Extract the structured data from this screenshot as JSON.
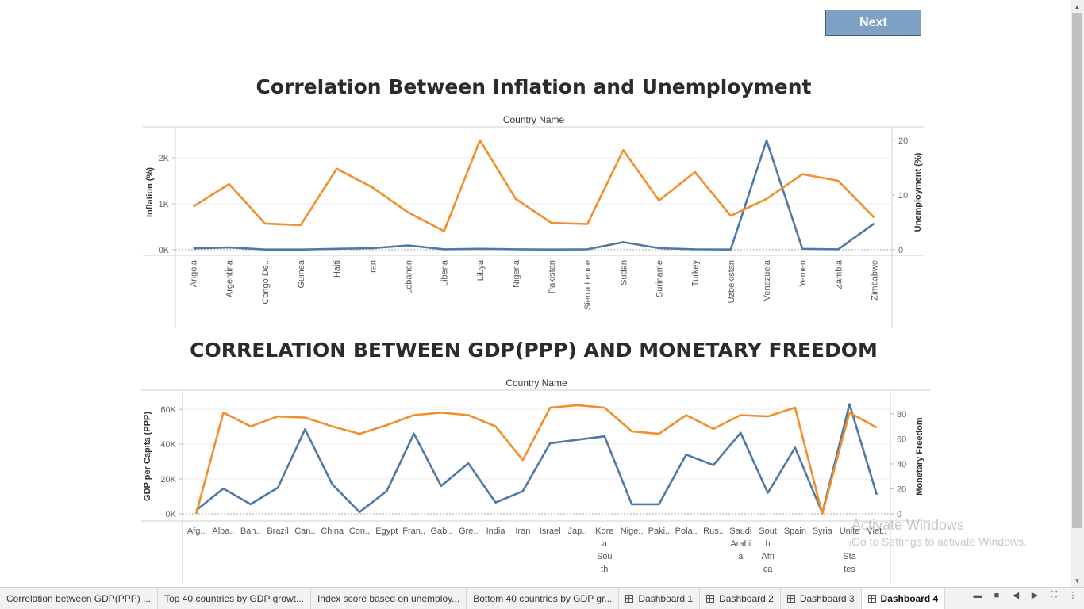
{
  "next_button": {
    "label": "Next"
  },
  "charts": [
    {
      "title": "Correlation Between Inflation and Unemployment",
      "header": "Country Name",
      "left_axis": {
        "label": "Inflation (%)",
        "ticks": [
          "0K",
          "1K",
          "2K"
        ]
      },
      "right_axis": {
        "label": "Unemployment (%)",
        "ticks": [
          "0",
          "10",
          "20"
        ]
      },
      "categories": [
        "Angola",
        "Argentina",
        "Congo De..",
        "Guinea",
        "Haiti",
        "Iran",
        "Lebanon",
        "Liberia",
        "Libya",
        "Nigeria",
        "Pakistan",
        "Sierra Leone",
        "Sudan",
        "Suriname",
        "Turkey",
        "Uzbekistan",
        "Venezuela",
        "Yemen",
        "Zambia",
        "Zimbabwe"
      ]
    },
    {
      "title": "CORRELATION BETWEEN GDP(PPP) AND MONETARY FREEDOM",
      "header": "Country Name",
      "left_axis": {
        "label": "GDP per Capita (PPP)",
        "ticks": [
          "0K",
          "20K",
          "40K",
          "60K"
        ]
      },
      "right_axis": {
        "label": "Monetary Freedom",
        "ticks": [
          "0",
          "20",
          "40",
          "60",
          "80"
        ]
      },
      "categories": [
        "Afg..",
        "Alba..",
        "Ban..",
        "Brazil",
        "Can..",
        "China",
        "Con..",
        "Egypt",
        "Fran..",
        "Gab..",
        "Gre..",
        "India",
        "Iran",
        "Israel",
        "Jap..",
        "Kore a Sou th",
        "Nige..",
        "Paki..",
        "Pola..",
        "Rus..",
        "Saudi Arabi a",
        "Sout h Afri ca",
        "Spain",
        "Syria",
        "Unite d Sta tes",
        "Viet.."
      ]
    }
  ],
  "chart_data": [
    {
      "type": "line",
      "title": "Correlation Between Inflation and Unemployment",
      "xlabel": "Country Name",
      "categories": [
        "Angola",
        "Argentina",
        "Congo De..",
        "Guinea",
        "Haiti",
        "Iran",
        "Lebanon",
        "Liberia",
        "Libya",
        "Nigeria",
        "Pakistan",
        "Sierra Leone",
        "Sudan",
        "Suriname",
        "Turkey",
        "Uzbekistan",
        "Venezuela",
        "Yemen",
        "Zambia",
        "Zimbabwe"
      ],
      "series": [
        {
          "name": "Inflation (%)",
          "axis": "left",
          "color": "#4e79a7",
          "values": [
            30,
            50,
            5,
            5,
            20,
            35,
            95,
            10,
            20,
            10,
            5,
            10,
            165,
            35,
            10,
            5,
            2380,
            20,
            10,
            570
          ]
        },
        {
          "name": "Unemployment (%)",
          "axis": "right",
          "color": "#f28e2b",
          "values": [
            7.9,
            12.0,
            4.8,
            4.5,
            14.8,
            11.4,
            6.8,
            3.4,
            20.0,
            9.3,
            4.9,
            4.7,
            18.2,
            9.0,
            14.2,
            6.2,
            9.3,
            13.8,
            12.6,
            5.9
          ]
        }
      ],
      "ylim_left": [
        0,
        2500
      ],
      "ylim_right": [
        0,
        21
      ],
      "grid": true
    },
    {
      "type": "line",
      "title": "CORRELATION BETWEEN GDP(PPP) AND MONETARY FREEDOM",
      "xlabel": "Country Name",
      "categories": [
        "Afg..",
        "Alba..",
        "Ban..",
        "Brazil",
        "Can..",
        "China",
        "Con..",
        "Egypt",
        "Fran..",
        "Gab..",
        "Gre..",
        "India",
        "Iran",
        "Israel",
        "Jap..",
        "Kore a Sou th",
        "Nige..",
        "Paki..",
        "Pola..",
        "Rus..",
        "Saudi Arabi a",
        "Sout h Afri ca",
        "Spain",
        "Syria",
        "Unite d Sta tes",
        "Viet.."
      ],
      "series": [
        {
          "name": "GDP per Capita (PPP)",
          "axis": "left",
          "color": "#4e79a7",
          "values": [
            2000,
            14500,
            5500,
            15000,
            48500,
            17000,
            1000,
            13000,
            46000,
            16000,
            29000,
            6500,
            13000,
            40500,
            42500,
            44500,
            5500,
            5500,
            34000,
            28000,
            46500,
            12000,
            38000,
            500,
            63000,
            11000
          ]
        },
        {
          "name": "Monetary Freedom",
          "axis": "right",
          "color": "#f28e2b",
          "values": [
            0,
            81,
            70,
            78,
            77,
            70,
            64,
            71,
            79,
            81,
            79,
            70,
            43,
            85,
            87,
            85,
            66,
            64,
            79,
            68,
            79,
            78,
            85,
            0,
            81,
            69
          ]
        }
      ],
      "ylim_left": [
        0,
        66000
      ],
      "ylim_right": [
        0,
        92
      ],
      "grid": true
    }
  ],
  "tabs": [
    {
      "label": "Correlation between GDP(PPP) ...",
      "dashboard": false,
      "active": false
    },
    {
      "label": "Top 40 countries by GDP growt...",
      "dashboard": false,
      "active": false
    },
    {
      "label": "Index score based on unemploy...",
      "dashboard": false,
      "active": false
    },
    {
      "label": "Bottom 40 countries by GDP gr...",
      "dashboard": false,
      "active": false
    },
    {
      "label": "Dashboard 1",
      "dashboard": true,
      "active": false
    },
    {
      "label": "Dashboard 2",
      "dashboard": true,
      "active": false
    },
    {
      "label": "Dashboard 3",
      "dashboard": true,
      "active": false
    },
    {
      "label": "Dashboard 4",
      "dashboard": true,
      "active": true
    }
  ],
  "bottom_controls": [
    "layout-icon",
    "view-icon",
    "first-icon",
    "prev-icon",
    "next-icon",
    "fullscreen-icon",
    "more-icon"
  ],
  "watermark": {
    "line1": "Activate Windows",
    "line2": "Go to Settings to activate Windows."
  }
}
